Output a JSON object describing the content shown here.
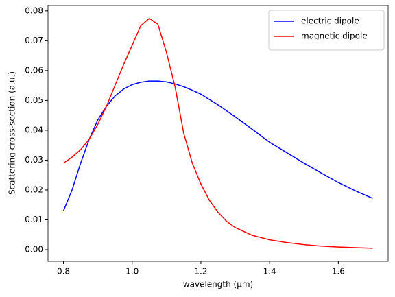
{
  "chart_data": {
    "type": "line",
    "xlabel": "wavelength (μm)",
    "ylabel": "Scattering cross-section (a.u.)",
    "x": [
      0.8,
      0.825,
      0.85,
      0.875,
      0.9,
      0.925,
      0.95,
      0.975,
      1.0,
      1.025,
      1.05,
      1.075,
      1.1,
      1.125,
      1.15,
      1.175,
      1.2,
      1.225,
      1.25,
      1.275,
      1.3,
      1.35,
      1.4,
      1.45,
      1.5,
      1.55,
      1.6,
      1.65,
      1.7
    ],
    "series": [
      {
        "name": "electric dipole",
        "color": "#0000ff",
        "values": [
          0.013,
          0.02,
          0.029,
          0.037,
          0.0435,
          0.048,
          0.0515,
          0.0538,
          0.0553,
          0.0561,
          0.0565,
          0.0565,
          0.0562,
          0.0555,
          0.0546,
          0.0534,
          0.0521,
          0.0503,
          0.0485,
          0.0465,
          0.0445,
          0.0403,
          0.036,
          0.0325,
          0.029,
          0.0257,
          0.0225,
          0.0197,
          0.0172
        ]
      },
      {
        "name": "magnetic dipole",
        "color": "#ff0000",
        "values": [
          0.029,
          0.031,
          0.0335,
          0.037,
          0.042,
          0.048,
          0.055,
          0.062,
          0.0685,
          0.075,
          0.0775,
          0.0755,
          0.066,
          0.0545,
          0.039,
          0.029,
          0.022,
          0.0165,
          0.0125,
          0.0095,
          0.0074,
          0.0048,
          0.0033,
          0.0024,
          0.0017,
          0.0012,
          0.0009,
          0.0007,
          0.0005
        ]
      }
    ],
    "xlim": [
      0.755,
      1.745
    ],
    "xticks": [
      0.8,
      {
        "value": 1,
        "label": "1.0"
      },
      1.2,
      1.4,
      1.6
    ],
    "ylim": [
      -0.0039,
      0.0818
    ],
    "yticks": [
      {
        "value": 0,
        "label": "0.00"
      },
      {
        "value": 0.01,
        "label": "0.01"
      },
      {
        "value": 0.02,
        "label": "0.02"
      },
      {
        "value": 0.03,
        "label": "0.03"
      },
      {
        "value": 0.04,
        "label": "0.04"
      },
      {
        "value": 0.05,
        "label": "0.05"
      },
      {
        "value": 0.06,
        "label": "0.06"
      },
      {
        "value": 0.07,
        "label": "0.07"
      },
      {
        "value": 0.08,
        "label": "0.08"
      }
    ],
    "grid": false,
    "legend": "upper right"
  }
}
